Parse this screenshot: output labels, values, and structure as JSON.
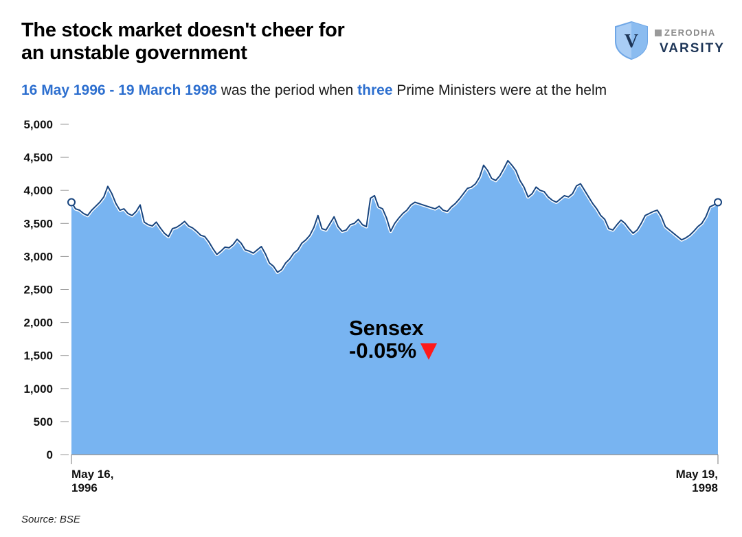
{
  "header": {
    "title_line1": "The stock market doesn't cheer for",
    "title_line2": "an unstable government",
    "subtitle_date_range": "16 May 1996 - 19 March 1998",
    "subtitle_text1": " was the period when ",
    "subtitle_highlight": "three",
    "subtitle_text2": " Prime Ministers were at the helm"
  },
  "logo": {
    "top_text": "ZERODHA",
    "bottom_text": "VARSITY",
    "monogram": "V"
  },
  "annotation": {
    "label": "Sensex",
    "change": "-0.05%"
  },
  "source": "Source: BSE",
  "colors": {
    "area_fill": "#78b4f1",
    "line": "#17447e",
    "highlight_text": "#2d6fcf",
    "down_marker": "#ff1a1a"
  },
  "chart_data": {
    "type": "area",
    "series_name": "Sensex",
    "title": "The stock market doesn't cheer for an unstable government",
    "ylim": [
      0,
      5000
    ],
    "y_ticks": [
      0,
      500,
      1000,
      1500,
      2000,
      2500,
      3000,
      3500,
      4000,
      4500,
      5000
    ],
    "y_tick_labels": [
      "0",
      "500",
      "1,000",
      "1,500",
      "2,000",
      "2,500",
      "3,000",
      "3,500",
      "4,000",
      "4,500",
      "5,000"
    ],
    "x_tick_labels": [
      {
        "line1": "May 16,",
        "line2": "1996"
      },
      {
        "line1": "May 19,",
        "line2": "1998"
      }
    ],
    "grid": false,
    "values": [
      3820,
      3720,
      3700,
      3650,
      3620,
      3700,
      3760,
      3820,
      3900,
      4060,
      3950,
      3800,
      3700,
      3720,
      3650,
      3620,
      3680,
      3780,
      3520,
      3480,
      3460,
      3520,
      3430,
      3350,
      3300,
      3420,
      3440,
      3480,
      3530,
      3460,
      3430,
      3380,
      3320,
      3300,
      3220,
      3120,
      3030,
      3080,
      3140,
      3130,
      3180,
      3260,
      3200,
      3100,
      3080,
      3050,
      3100,
      3150,
      3040,
      2900,
      2850,
      2760,
      2800,
      2900,
      2960,
      3050,
      3100,
      3200,
      3250,
      3320,
      3440,
      3620,
      3420,
      3400,
      3500,
      3600,
      3450,
      3380,
      3400,
      3480,
      3500,
      3560,
      3480,
      3450,
      3880,
      3920,
      3750,
      3720,
      3580,
      3380,
      3500,
      3580,
      3650,
      3700,
      3780,
      3820,
      3800,
      3780,
      3760,
      3740,
      3720,
      3760,
      3700,
      3680,
      3750,
      3800,
      3870,
      3950,
      4030,
      4050,
      4100,
      4200,
      4380,
      4300,
      4180,
      4150,
      4220,
      4330,
      4450,
      4380,
      4300,
      4150,
      4050,
      3900,
      3950,
      4050,
      4000,
      3980,
      3900,
      3850,
      3820,
      3870,
      3920,
      3900,
      3950,
      4070,
      4100,
      4000,
      3900,
      3800,
      3720,
      3620,
      3560,
      3420,
      3400,
      3480,
      3550,
      3500,
      3420,
      3350,
      3400,
      3500,
      3620,
      3650,
      3680,
      3700,
      3600,
      3450,
      3400,
      3350,
      3300,
      3250,
      3280,
      3320,
      3380,
      3450,
      3500,
      3600,
      3750,
      3780,
      3820
    ]
  }
}
